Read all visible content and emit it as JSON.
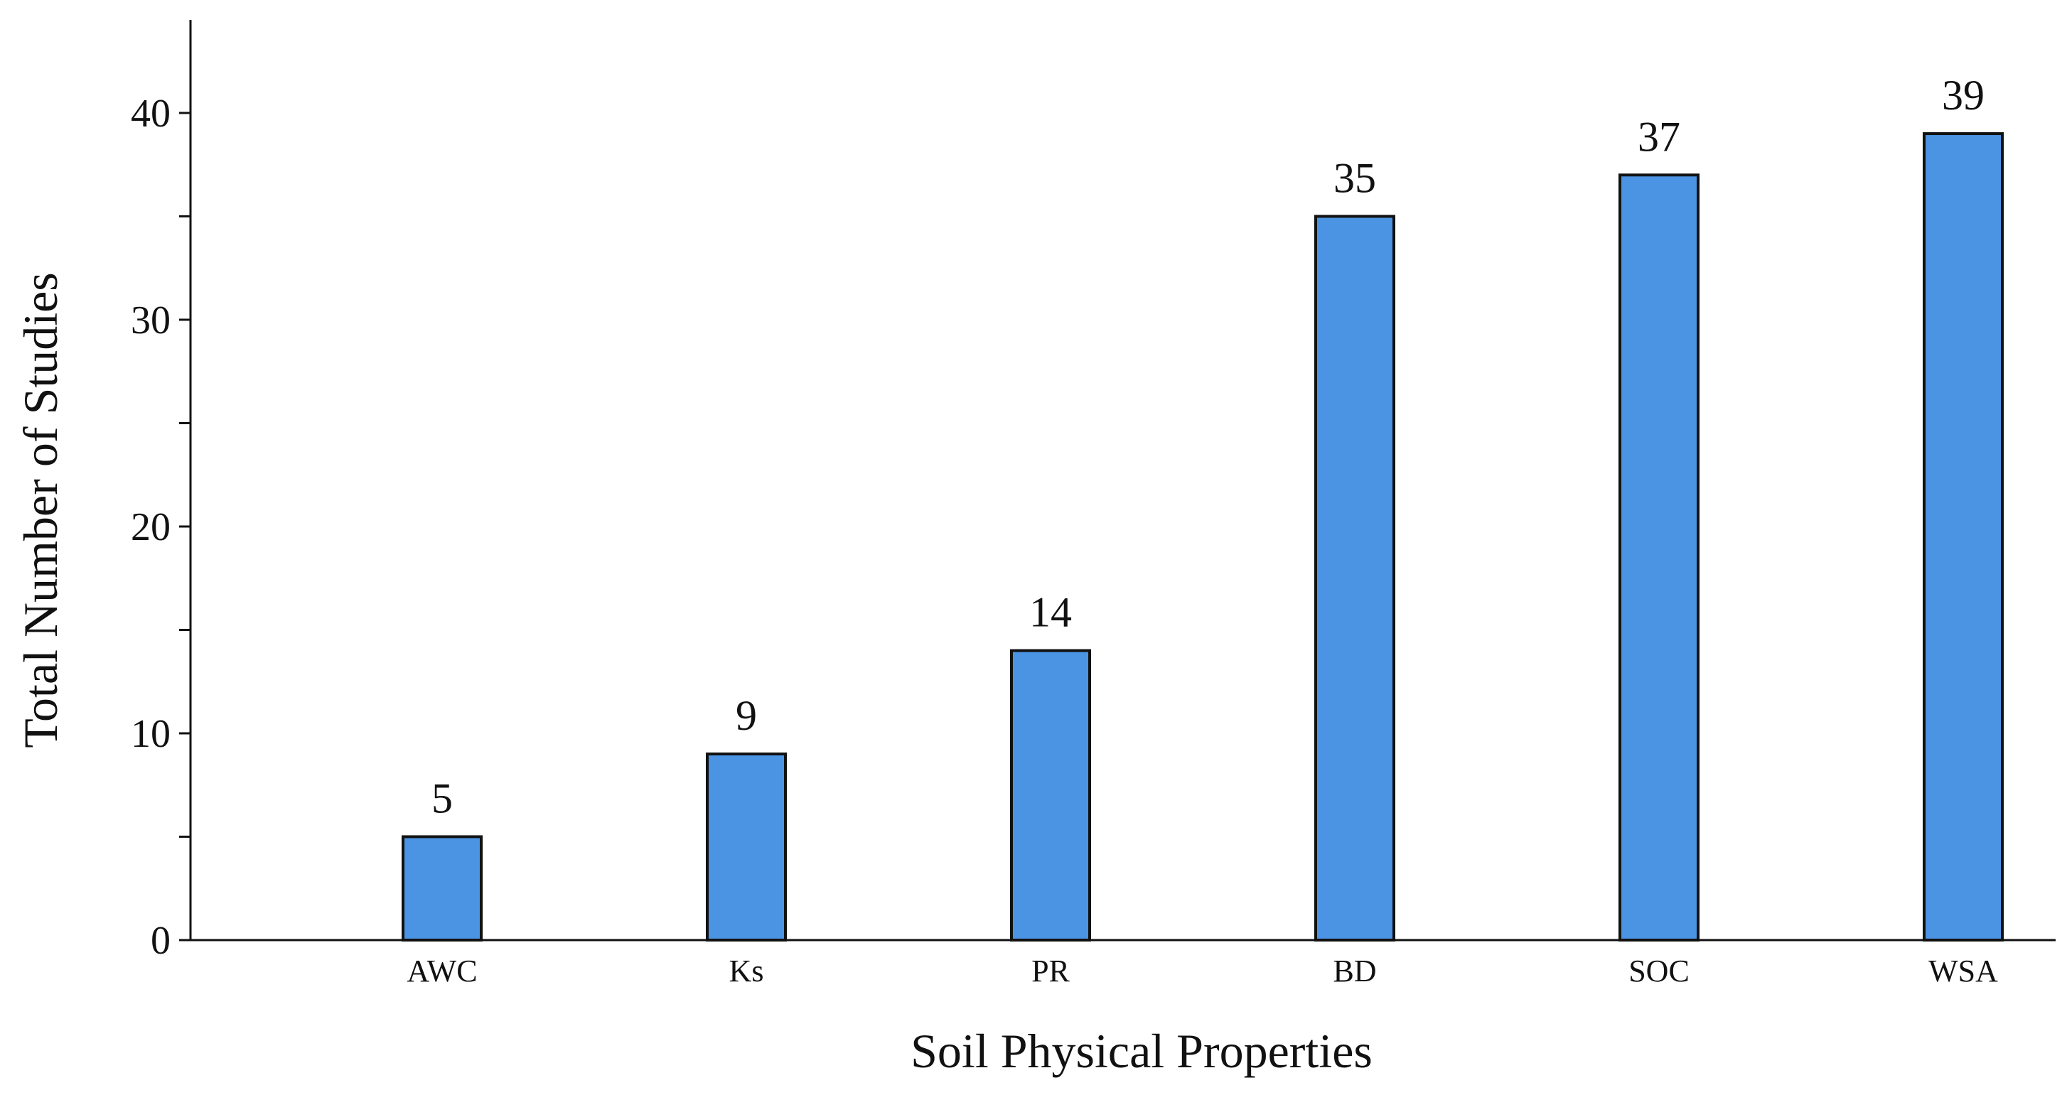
{
  "chart_data": {
    "type": "bar",
    "title": "",
    "xlabel": "Soil Physical Properties",
    "ylabel": "Total Number of Studies",
    "categories": [
      "AWC",
      "Ks",
      "PR",
      "BD",
      "SOC",
      "WSA"
    ],
    "values": [
      5,
      9,
      14,
      35,
      37,
      39
    ],
    "value_labels": [
      "5",
      "9",
      "14",
      "35",
      "37",
      "39"
    ],
    "ylim": [
      0,
      44.5
    ],
    "y_ticks": [
      0,
      10,
      20,
      30,
      40
    ],
    "y_tick_labels": [
      "0",
      "10",
      "20",
      "30",
      "40"
    ],
    "y_minor_ticks": [
      5,
      15,
      25,
      35
    ],
    "grid": false,
    "legend": "none",
    "bar_color": "#4a94e3",
    "bar_edge_color": "#111111"
  }
}
